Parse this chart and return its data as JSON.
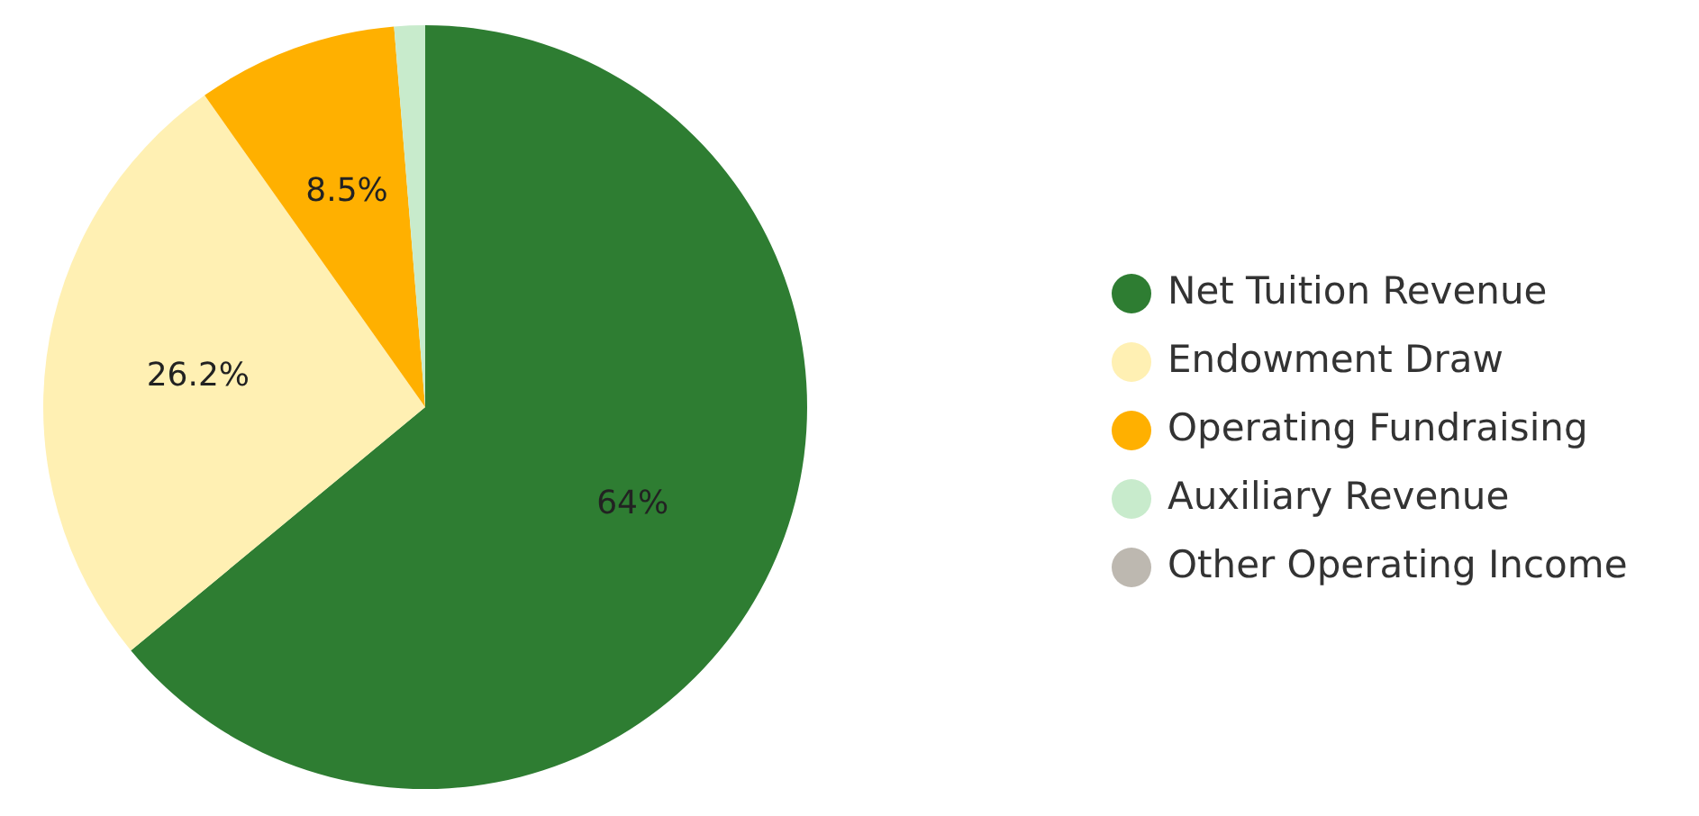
{
  "chart_data": {
    "type": "pie",
    "categories": [
      "Net Tuition Revenue",
      "Endowment Draw",
      "Operating Fundraising",
      "Auxiliary Revenue",
      "Other Operating Income"
    ],
    "values": [
      64,
      26.2,
      8.5,
      1.3,
      0
    ],
    "colors": [
      "#2e7d32",
      "#fff0b3",
      "#ffb000",
      "#c8ebcc",
      "#bdb8b0"
    ],
    "value_labels": [
      "64%",
      "26.2%",
      "8.5%",
      null,
      null
    ],
    "legend": "right"
  }
}
